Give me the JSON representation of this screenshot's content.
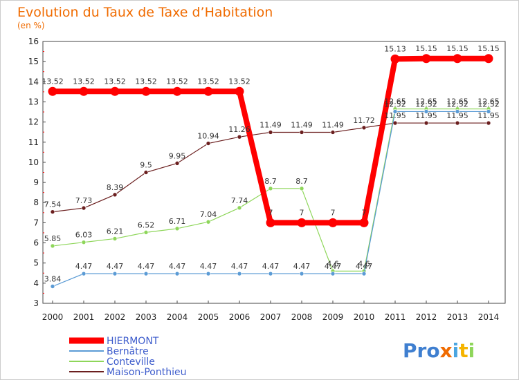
{
  "chart_data": {
    "type": "line",
    "title": "Evolution du Taux de Taxe d’Habitation",
    "subtitle": "(en %)",
    "x": [
      "2000",
      "2001",
      "2002",
      "2003",
      "2004",
      "2005",
      "2006",
      "2007",
      "2008",
      "2009",
      "2010",
      "2011",
      "2012",
      "2013",
      "2014"
    ],
    "ylim": [
      3,
      16
    ],
    "yticks": [
      3,
      4,
      5,
      6,
      7,
      8,
      9,
      10,
      11,
      12,
      13,
      14,
      15,
      16
    ],
    "grid": false,
    "legend_position": "bottom-left",
    "series": [
      {
        "name": "HIERMONT",
        "color": "#ff0000",
        "values": [
          13.52,
          13.52,
          13.52,
          13.52,
          13.52,
          13.52,
          13.52,
          7,
          7,
          7,
          7,
          15.13,
          15.15,
          15.15,
          15.15
        ],
        "labels": [
          "13.52",
          "13.52",
          "13.52",
          "13.52",
          "13.52",
          "13.52",
          "13.52",
          "7",
          "7",
          "7",
          "7",
          "15.13",
          "15.15",
          "15.15",
          "15.15"
        ]
      },
      {
        "name": "Bernâtre",
        "color": "#5b9bd5",
        "values": [
          3.84,
          4.47,
          4.47,
          4.47,
          4.47,
          4.47,
          4.47,
          4.47,
          4.47,
          4.47,
          4.47,
          12.52,
          12.52,
          12.52,
          12.52
        ],
        "labels": [
          "3.84",
          "4.47",
          "4.47",
          "4.47",
          "4.47",
          "4.47",
          "4.47",
          "4.47",
          "4.47",
          "4.47",
          "4.47",
          "12.52",
          "12.52",
          "12.52",
          "12.52"
        ]
      },
      {
        "name": "Conteville",
        "color": "#8ed65a",
        "values": [
          5.85,
          6.03,
          6.21,
          6.52,
          6.71,
          7.04,
          7.74,
          8.7,
          8.7,
          4.6,
          4.6,
          12.65,
          12.65,
          12.65,
          12.65
        ],
        "labels": [
          "5.85",
          "6.03",
          "6.21",
          "6.52",
          "6.71",
          "7.04",
          "7.74",
          "8.7",
          "8.7",
          "4.6",
          "4.6",
          "12.65",
          "12.65",
          "12.65",
          "12.65"
        ]
      },
      {
        "name": "Maison-Ponthieu",
        "color": "#6b1f1f",
        "values": [
          7.54,
          7.73,
          8.39,
          9.5,
          9.95,
          10.94,
          11.26,
          11.49,
          11.49,
          11.49,
          11.72,
          11.95,
          11.95,
          11.95,
          11.95
        ],
        "labels": [
          "7.54",
          "7.73",
          "8.39",
          "9.5",
          "9.95",
          "10.94",
          "11.26",
          "11.49",
          "11.49",
          "11.49",
          "11.72",
          "11.95",
          "11.95",
          "11.95",
          "11.95"
        ]
      }
    ]
  },
  "logo": {
    "text": "Proxiti"
  }
}
